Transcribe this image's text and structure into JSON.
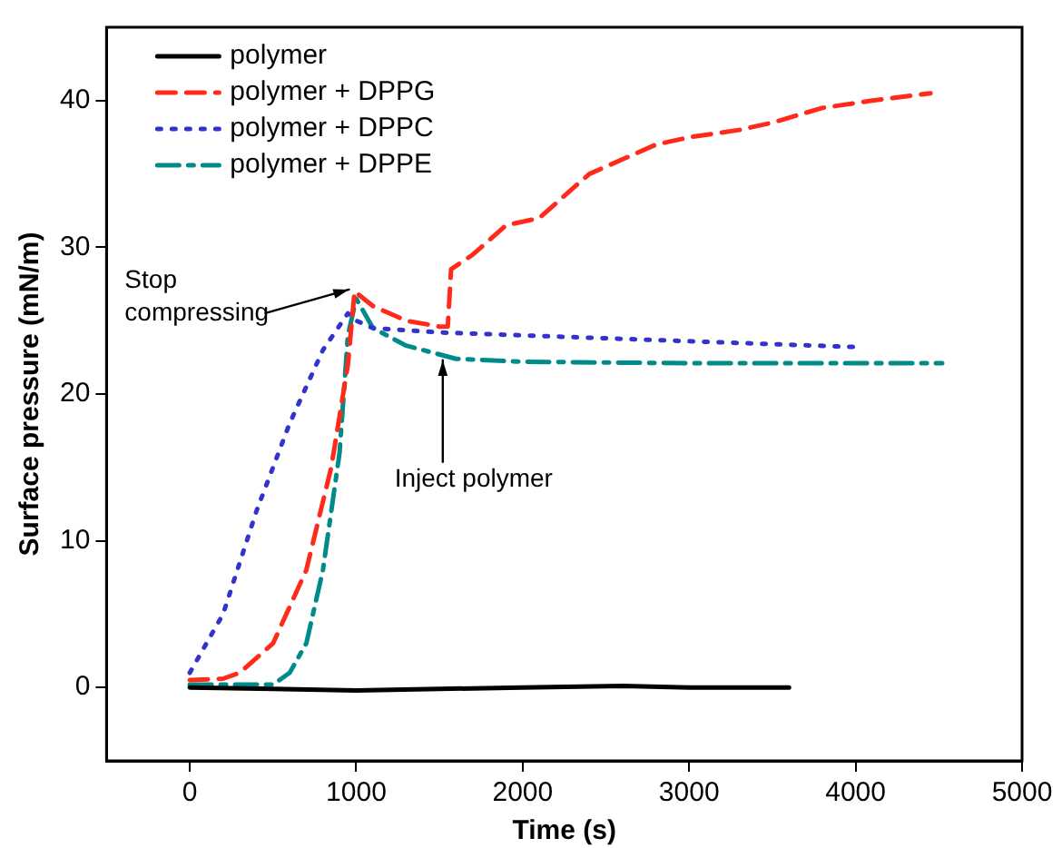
{
  "chart_data": {
    "type": "line",
    "xlabel": "Time (s)",
    "ylabel": "Surface pressure (mN/m)",
    "xlim": [
      -500,
      5000
    ],
    "xticks": [
      0,
      1000,
      2000,
      3000,
      4000,
      5000
    ],
    "ylim": [
      -5,
      45
    ],
    "yticks": [
      0,
      10,
      20,
      30,
      40
    ],
    "grid": false,
    "legend": "top left",
    "marker": "none",
    "series": [
      {
        "name": "polymer",
        "color": "#000000",
        "line_style": "solid",
        "x": [
          0,
          500,
          1000,
          1500,
          2000,
          2600,
          3000,
          3600
        ],
        "values": [
          0,
          -0.1,
          -0.2,
          -0.1,
          0,
          0.1,
          0,
          0
        ]
      },
      {
        "name": "polymer + DPPG",
        "color": "#ff2a1a",
        "line_style": "dashed",
        "x": [
          0,
          200,
          300,
          500,
          700,
          850,
          950,
          990,
          1100,
          1300,
          1500,
          1550,
          1570,
          1700,
          1900,
          2100,
          2400,
          2800,
          3000,
          3300,
          3500,
          3800,
          4100,
          4450
        ],
        "values": [
          0.5,
          0.6,
          1,
          3,
          8,
          15,
          22,
          27,
          26,
          25,
          24.6,
          24.6,
          28.5,
          29.5,
          31.5,
          32,
          35,
          37,
          37.5,
          38,
          38.5,
          39.5,
          40,
          40.5
        ]
      },
      {
        "name": "polymer + DPPC",
        "color": "#3333cc",
        "line_style": "dotted",
        "x": [
          0,
          200,
          400,
          600,
          800,
          950,
          1000,
          1100,
          1500,
          2000,
          3000,
          4010
        ],
        "values": [
          1,
          5,
          12,
          18,
          23,
          25.5,
          25,
          24.5,
          24.2,
          24,
          23.6,
          23.2
        ]
      },
      {
        "name": "polymer + DPPE",
        "color": "#008b8b",
        "line_style": "dashdot",
        "x": [
          0,
          500,
          600,
          700,
          800,
          900,
          950,
          1000,
          1100,
          1300,
          1600,
          2000,
          3000,
          4520
        ],
        "values": [
          0.2,
          0.2,
          1,
          3,
          8,
          16,
          24,
          26.5,
          24.5,
          23.3,
          22.4,
          22.2,
          22.1,
          22.1
        ]
      }
    ],
    "annotations": [
      {
        "text": "Stop\ncompressing",
        "x": 1000,
        "y": 27
      },
      {
        "text": "Inject polymer",
        "x": 1520,
        "y": 22.8
      }
    ]
  }
}
